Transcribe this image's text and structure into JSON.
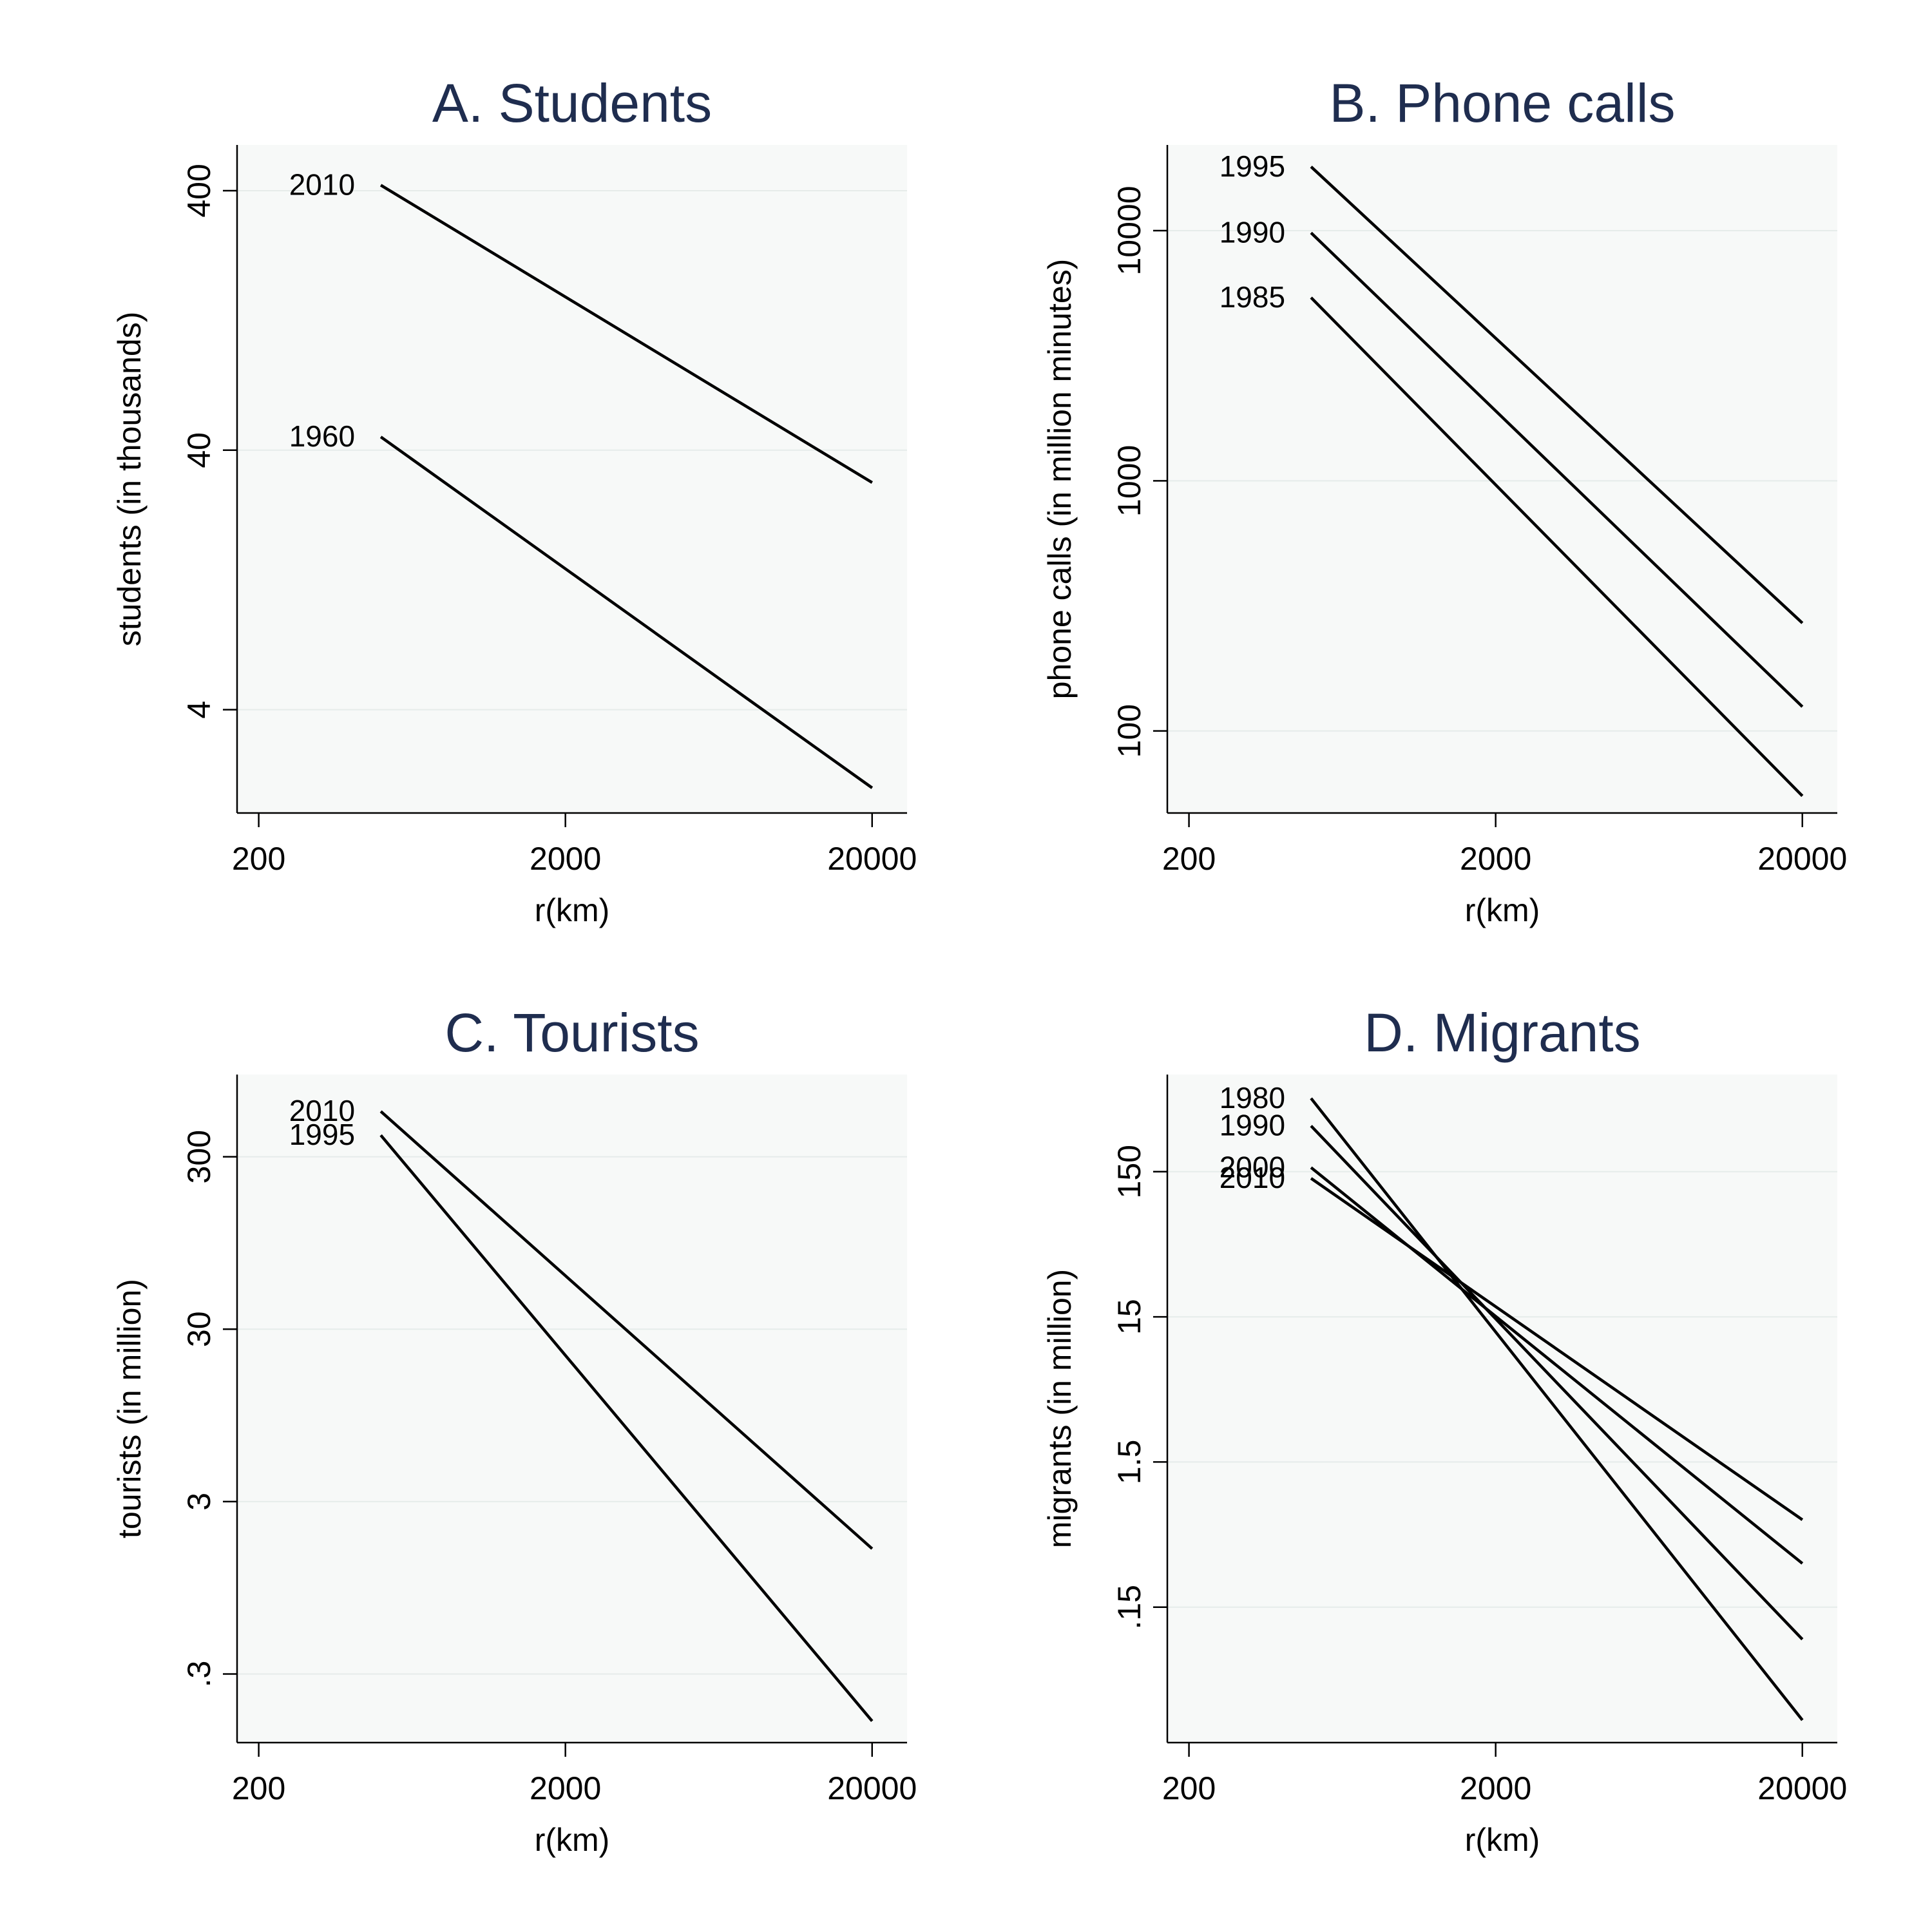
{
  "chart_data": [
    {
      "type": "line",
      "title": "A. Students",
      "xlabel": "r(km)",
      "ylabel": "students (in thousands)",
      "xscale": "log",
      "yscale": "log",
      "xlim": [
        170,
        26000
      ],
      "ylim": [
        1.6,
        600
      ],
      "xticks": [
        200,
        2000,
        20000
      ],
      "xtick_labels": [
        "200",
        "2000",
        "20000"
      ],
      "yticks": [
        4,
        40,
        400
      ],
      "ytick_labels": [
        "4",
        "40",
        "400"
      ],
      "grid": true,
      "series": [
        {
          "name": "2010",
          "x": [
            500,
            20000
          ],
          "values": [
            420,
            30
          ]
        },
        {
          "name": "1960",
          "x": [
            500,
            20000
          ],
          "values": [
            45,
            2.0
          ]
        }
      ]
    },
    {
      "type": "line",
      "title": "B. Phone calls",
      "xlabel": "r(km)",
      "ylabel": "phone calls (in million minutes)",
      "xscale": "log",
      "yscale": "log",
      "xlim": [
        170,
        26000
      ],
      "ylim": [
        47,
        22000
      ],
      "xticks": [
        200,
        2000,
        20000
      ],
      "xtick_labels": [
        "200",
        "2000",
        "20000"
      ],
      "yticks": [
        100,
        1000,
        10000
      ],
      "ytick_labels": [
        "100",
        "1000",
        "10000"
      ],
      "grid": true,
      "series": [
        {
          "name": "1995",
          "x": [
            500,
            20000
          ],
          "values": [
            18000,
            270
          ]
        },
        {
          "name": "1990",
          "x": [
            500,
            20000
          ],
          "values": [
            9800,
            125
          ]
        },
        {
          "name": "1985",
          "x": [
            500,
            20000
          ],
          "values": [
            5400,
            55
          ]
        }
      ]
    },
    {
      "type": "line",
      "title": "C. Tourists",
      "xlabel": "r(km)",
      "ylabel": "tourists (in million)",
      "xscale": "log",
      "yscale": "log",
      "xlim": [
        170,
        26000
      ],
      "ylim": [
        0.12,
        900
      ],
      "xticks": [
        200,
        2000,
        20000
      ],
      "xtick_labels": [
        "200",
        "2000",
        "20000"
      ],
      "yticks": [
        0.3,
        3,
        30,
        300
      ],
      "ytick_labels": [
        ".3",
        "3",
        "30",
        "300"
      ],
      "grid": true,
      "series": [
        {
          "name": "2010",
          "x": [
            500,
            20000
          ],
          "values": [
            550,
            1.6
          ]
        },
        {
          "name": "1995",
          "x": [
            500,
            20000
          ],
          "values": [
            400,
            0.16
          ]
        }
      ]
    },
    {
      "type": "line",
      "title": "D. Migrants",
      "xlabel": "r(km)",
      "ylabel": "migrants (in million)",
      "xscale": "log",
      "yscale": "log",
      "xlim": [
        170,
        26000
      ],
      "ylim": [
        0.0175,
        700
      ],
      "xticks": [
        200,
        2000,
        20000
      ],
      "xtick_labels": [
        "200",
        "2000",
        "20000"
      ],
      "yticks": [
        0.15,
        1.5,
        15,
        150
      ],
      "ytick_labels": [
        ".15",
        "1.5",
        "15",
        "150"
      ],
      "grid": true,
      "series": [
        {
          "name": "1980",
          "x": [
            500,
            20000
          ],
          "values": [
            480,
            0.025
          ]
        },
        {
          "name": "1990",
          "x": [
            500,
            20000
          ],
          "values": [
            310,
            0.09
          ]
        },
        {
          "name": "2000",
          "x": [
            500,
            20000
          ],
          "values": [
            160,
            0.3
          ]
        },
        {
          "name": "2010",
          "x": [
            500,
            20000
          ],
          "values": [
            135,
            0.6
          ]
        }
      ]
    }
  ]
}
